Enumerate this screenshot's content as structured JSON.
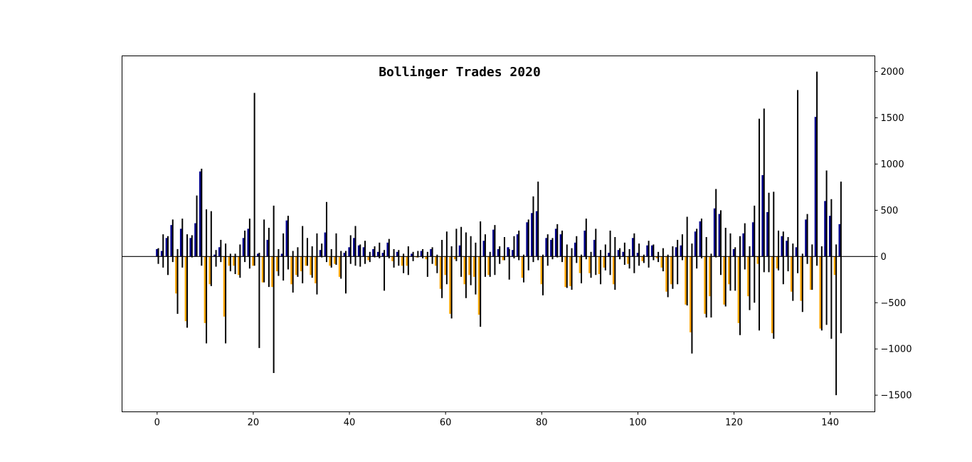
{
  "chart_data": {
    "type": "bar",
    "title": "Bollinger Trades 2020",
    "xlabel": "",
    "ylabel": "",
    "xlim": [
      -7.3,
      149.3
    ],
    "ylim": [
      -1680,
      2170
    ],
    "xticks": [
      0,
      20,
      40,
      60,
      80,
      100,
      120,
      140
    ],
    "yticks": [
      -1500,
      -1000,
      -500,
      0,
      500,
      1000,
      1500,
      2000
    ],
    "y_axis_side": "right",
    "zero_line": true,
    "grid": false,
    "legend": "none",
    "colors": {
      "gain": "#00008b",
      "loss": "#ffa500",
      "range": "#000000",
      "zero": "#000000"
    },
    "bars": [
      {
        "x": 0,
        "value": 80,
        "high": 90,
        "low": -80
      },
      {
        "x": 1,
        "value": 60,
        "high": 240,
        "low": -120
      },
      {
        "x": 2,
        "value": 200,
        "high": 220,
        "low": -200
      },
      {
        "x": 3,
        "value": 340,
        "high": 400,
        "low": -60
      },
      {
        "x": 4,
        "value": -400,
        "high": 80,
        "low": -620
      },
      {
        "x": 5,
        "value": 300,
        "high": 410,
        "low": -120
      },
      {
        "x": 6,
        "value": -700,
        "high": 240,
        "low": -770
      },
      {
        "x": 7,
        "value": 200,
        "high": 230,
        "low": -10
      },
      {
        "x": 8,
        "value": 360,
        "high": 660,
        "low": 0
      },
      {
        "x": 9,
        "value": 920,
        "high": 950,
        "low": -100
      },
      {
        "x": 10,
        "value": -720,
        "high": 510,
        "low": -940
      },
      {
        "x": 11,
        "value": -300,
        "high": 490,
        "low": -320
      },
      {
        "x": 12,
        "value": 20,
        "high": 70,
        "low": -110
      },
      {
        "x": 13,
        "value": 100,
        "high": 180,
        "low": -60
      },
      {
        "x": 14,
        "value": -650,
        "high": 140,
        "low": -940
      },
      {
        "x": 15,
        "value": -100,
        "high": 30,
        "low": -160
      },
      {
        "x": 16,
        "value": -100,
        "high": 30,
        "low": -190
      },
      {
        "x": 17,
        "value": -200,
        "high": 130,
        "low": -230
      },
      {
        "x": 18,
        "value": 200,
        "high": 280,
        "low": -60
      },
      {
        "x": 19,
        "value": 300,
        "high": 410,
        "low": -130
      },
      {
        "x": 20,
        "value": -100,
        "high": 1770,
        "low": -100
      },
      {
        "x": 21,
        "value": 30,
        "high": 40,
        "low": -990
      },
      {
        "x": 22,
        "value": -280,
        "high": 400,
        "low": -280
      },
      {
        "x": 23,
        "value": 180,
        "high": 310,
        "low": -330
      },
      {
        "x": 24,
        "value": -330,
        "high": 550,
        "low": -1260
      },
      {
        "x": 25,
        "value": -160,
        "high": 80,
        "low": -210
      },
      {
        "x": 26,
        "value": 30,
        "high": 250,
        "low": -260
      },
      {
        "x": 27,
        "value": 390,
        "high": 440,
        "low": -140
      },
      {
        "x": 28,
        "value": -300,
        "high": 60,
        "low": -390
      },
      {
        "x": 29,
        "value": -200,
        "high": 100,
        "low": -220
      },
      {
        "x": 30,
        "value": -160,
        "high": 330,
        "low": -290
      },
      {
        "x": 31,
        "value": -100,
        "high": 200,
        "low": -100
      },
      {
        "x": 32,
        "value": -200,
        "high": 110,
        "low": -230
      },
      {
        "x": 33,
        "value": -290,
        "high": 250,
        "low": -410
      },
      {
        "x": 34,
        "value": 70,
        "high": 140,
        "low": -10
      },
      {
        "x": 35,
        "value": 260,
        "high": 590,
        "low": -60
      },
      {
        "x": 36,
        "value": -100,
        "high": 80,
        "low": -120
      },
      {
        "x": 37,
        "value": -80,
        "high": 250,
        "low": -90
      },
      {
        "x": 38,
        "value": -220,
        "high": 60,
        "low": -240
      },
      {
        "x": 39,
        "value": 40,
        "high": 60,
        "low": -400
      },
      {
        "x": 40,
        "value": 100,
        "high": 230,
        "low": -80
      },
      {
        "x": 41,
        "value": 200,
        "high": 330,
        "low": -100
      },
      {
        "x": 42,
        "value": 120,
        "high": 130,
        "low": -110
      },
      {
        "x": 43,
        "value": 100,
        "high": 170,
        "low": -80
      },
      {
        "x": 44,
        "value": -40,
        "high": 50,
        "low": -60
      },
      {
        "x": 45,
        "value": 80,
        "high": 110,
        "low": -10
      },
      {
        "x": 46,
        "value": 50,
        "high": 150,
        "low": -20
      },
      {
        "x": 47,
        "value": 40,
        "high": 70,
        "low": -370
      },
      {
        "x": 48,
        "value": 150,
        "high": 190,
        "low": -20
      },
      {
        "x": 49,
        "value": -50,
        "high": 80,
        "low": -120
      },
      {
        "x": 50,
        "value": 50,
        "high": 70,
        "low": -100
      },
      {
        "x": 51,
        "value": -100,
        "high": 30,
        "low": -180
      },
      {
        "x": 52,
        "value": -100,
        "high": 110,
        "low": -200
      },
      {
        "x": 53,
        "value": 30,
        "high": 50,
        "low": -50
      },
      {
        "x": 54,
        "value": -10,
        "high": 60,
        "low": -10
      },
      {
        "x": 55,
        "value": 60,
        "high": 80,
        "low": -20
      },
      {
        "x": 56,
        "value": -30,
        "high": 50,
        "low": -220
      },
      {
        "x": 57,
        "value": 80,
        "high": 100,
        "low": -80
      },
      {
        "x": 58,
        "value": -100,
        "high": 20,
        "low": -180
      },
      {
        "x": 59,
        "value": -350,
        "high": 180,
        "low": -450
      },
      {
        "x": 60,
        "value": -200,
        "high": 270,
        "low": -300
      },
      {
        "x": 61,
        "value": -620,
        "high": 110,
        "low": -670
      },
      {
        "x": 62,
        "value": -30,
        "high": 300,
        "low": -50
      },
      {
        "x": 63,
        "value": 120,
        "high": 320,
        "low": -220
      },
      {
        "x": 64,
        "value": -300,
        "high": 260,
        "low": -450
      },
      {
        "x": 65,
        "value": -200,
        "high": 220,
        "low": -310
      },
      {
        "x": 66,
        "value": -220,
        "high": 150,
        "low": -410
      },
      {
        "x": 67,
        "value": -630,
        "high": 380,
        "low": -760
      },
      {
        "x": 68,
        "value": 170,
        "high": 240,
        "low": -220
      },
      {
        "x": 69,
        "value": -200,
        "high": 50,
        "low": -220
      },
      {
        "x": 70,
        "value": 290,
        "high": 340,
        "low": -200
      },
      {
        "x": 71,
        "value": 80,
        "high": 110,
        "low": -80
      },
      {
        "x": 72,
        "value": -40,
        "high": 210,
        "low": -40
      },
      {
        "x": 73,
        "value": 100,
        "high": 80,
        "low": -250
      },
      {
        "x": 74,
        "value": 70,
        "high": 220,
        "low": -20
      },
      {
        "x": 75,
        "value": 240,
        "high": 280,
        "low": -40
      },
      {
        "x": 76,
        "value": -230,
        "high": 20,
        "low": -280
      },
      {
        "x": 77,
        "value": 370,
        "high": 400,
        "low": -150
      },
      {
        "x": 78,
        "value": 470,
        "high": 650,
        "low": -60
      },
      {
        "x": 79,
        "value": 490,
        "high": 810,
        "low": -40
      },
      {
        "x": 80,
        "value": -300,
        "high": 20,
        "low": -420
      },
      {
        "x": 81,
        "value": 200,
        "high": 240,
        "low": -100
      },
      {
        "x": 82,
        "value": 180,
        "high": 200,
        "low": -30
      },
      {
        "x": 83,
        "value": 300,
        "high": 350,
        "low": -10
      },
      {
        "x": 84,
        "value": 240,
        "high": 280,
        "low": -60
      },
      {
        "x": 85,
        "value": -330,
        "high": 130,
        "low": -340
      },
      {
        "x": 86,
        "value": -320,
        "high": 90,
        "low": -360
      },
      {
        "x": 87,
        "value": 150,
        "high": 220,
        "low": -70
      },
      {
        "x": 88,
        "value": -180,
        "high": 20,
        "low": -290
      },
      {
        "x": 89,
        "value": 280,
        "high": 410,
        "low": -30
      },
      {
        "x": 90,
        "value": -180,
        "high": 50,
        "low": -230
      },
      {
        "x": 91,
        "value": 180,
        "high": 300,
        "low": -200
      },
      {
        "x": 92,
        "value": -190,
        "high": 70,
        "low": -300
      },
      {
        "x": 93,
        "value": -120,
        "high": 130,
        "low": -150
      },
      {
        "x": 94,
        "value": 40,
        "high": 280,
        "low": -200
      },
      {
        "x": 95,
        "value": -300,
        "high": 210,
        "low": -360
      },
      {
        "x": 96,
        "value": 70,
        "high": 90,
        "low": -30
      },
      {
        "x": 97,
        "value": 50,
        "high": 150,
        "low": -90
      },
      {
        "x": 98,
        "value": -80,
        "high": 80,
        "low": -130
      },
      {
        "x": 99,
        "value": 200,
        "high": 250,
        "low": -180
      },
      {
        "x": 100,
        "value": 40,
        "high": 140,
        "low": -100
      },
      {
        "x": 101,
        "value": -50,
        "high": 20,
        "low": -70
      },
      {
        "x": 102,
        "value": 120,
        "high": 170,
        "low": -120
      },
      {
        "x": 103,
        "value": 120,
        "high": 130,
        "low": -40
      },
      {
        "x": 104,
        "value": -20,
        "high": 50,
        "low": -60
      },
      {
        "x": 105,
        "value": -120,
        "high": 90,
        "low": -160
      },
      {
        "x": 106,
        "value": -380,
        "high": 20,
        "low": -440
      },
      {
        "x": 107,
        "value": -300,
        "high": 110,
        "low": -350
      },
      {
        "x": 108,
        "value": 100,
        "high": 180,
        "low": -300
      },
      {
        "x": 109,
        "value": 120,
        "high": 240,
        "low": -40
      },
      {
        "x": 110,
        "value": -520,
        "high": 430,
        "low": -530
      },
      {
        "x": 111,
        "value": -820,
        "high": 140,
        "low": -1050
      },
      {
        "x": 112,
        "value": 270,
        "high": 300,
        "low": -130
      },
      {
        "x": 113,
        "value": 380,
        "high": 410,
        "low": -20
      },
      {
        "x": 114,
        "value": -620,
        "high": 210,
        "low": -660
      },
      {
        "x": 115,
        "value": -430,
        "high": 30,
        "low": -660
      },
      {
        "x": 116,
        "value": 520,
        "high": 730,
        "low": -10
      },
      {
        "x": 117,
        "value": 460,
        "high": 500,
        "low": -200
      },
      {
        "x": 118,
        "value": -520,
        "high": 310,
        "low": -540
      },
      {
        "x": 119,
        "value": -300,
        "high": 250,
        "low": -370
      },
      {
        "x": 120,
        "value": 80,
        "high": 100,
        "low": -370
      },
      {
        "x": 121,
        "value": -720,
        "high": 220,
        "low": -850
      },
      {
        "x": 122,
        "value": 250,
        "high": 360,
        "low": -140
      },
      {
        "x": 123,
        "value": -430,
        "high": 110,
        "low": -580
      },
      {
        "x": 124,
        "value": 370,
        "high": 550,
        "low": -500
      },
      {
        "x": 125,
        "value": -80,
        "high": 1490,
        "low": -800
      },
      {
        "x": 126,
        "value": 880,
        "high": 1600,
        "low": -170
      },
      {
        "x": 127,
        "value": 480,
        "high": 690,
        "low": -170
      },
      {
        "x": 128,
        "value": -830,
        "high": 700,
        "low": -890
      },
      {
        "x": 129,
        "value": -130,
        "high": 280,
        "low": -150
      },
      {
        "x": 130,
        "value": 220,
        "high": 270,
        "low": -300
      },
      {
        "x": 131,
        "value": 170,
        "high": 210,
        "low": -160
      },
      {
        "x": 132,
        "value": -380,
        "high": 140,
        "low": -480
      },
      {
        "x": 133,
        "value": 100,
        "high": 1800,
        "low": -180
      },
      {
        "x": 134,
        "value": -480,
        "high": 30,
        "low": -600
      },
      {
        "x": 135,
        "value": 400,
        "high": 460,
        "low": -80
      },
      {
        "x": 136,
        "value": -360,
        "high": 130,
        "low": -360
      },
      {
        "x": 137,
        "value": 1510,
        "high": 2000,
        "low": -100
      },
      {
        "x": 138,
        "value": -780,
        "high": 110,
        "low": -800
      },
      {
        "x": 139,
        "value": 600,
        "high": 930,
        "low": -740
      },
      {
        "x": 140,
        "value": 440,
        "high": 620,
        "low": -890
      },
      {
        "x": 141,
        "value": -200,
        "high": 130,
        "low": -1500
      },
      {
        "x": 142,
        "value": 350,
        "high": 810,
        "low": -830
      }
    ]
  }
}
